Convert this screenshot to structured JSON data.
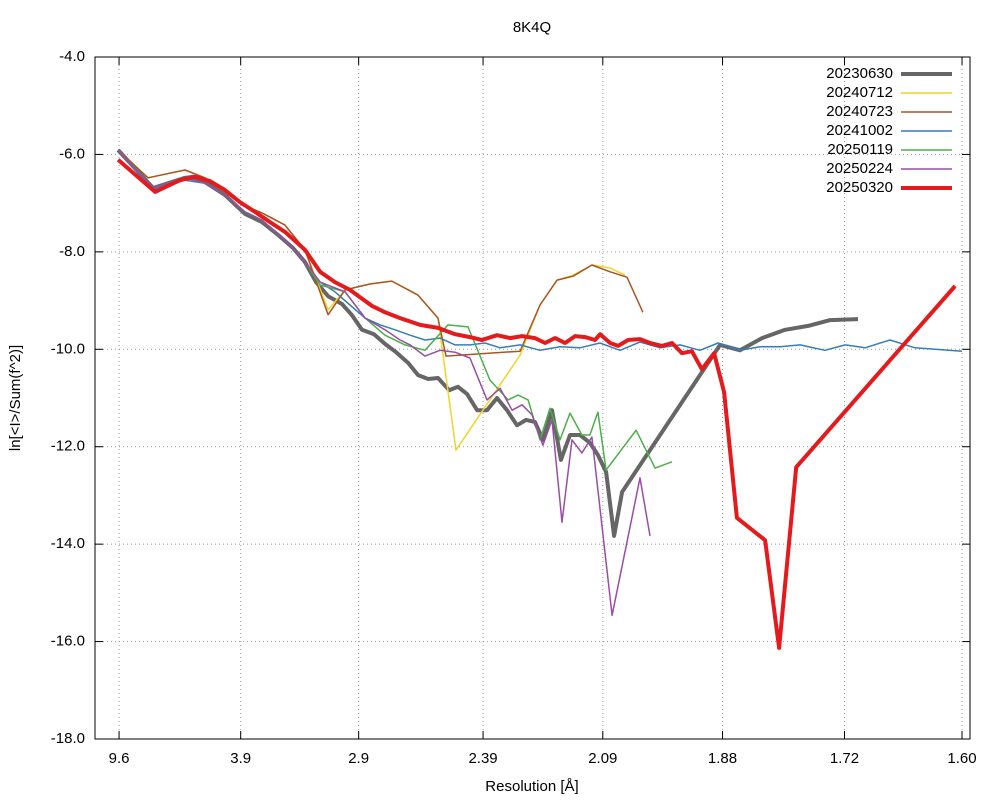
{
  "chart_data": {
    "type": "line",
    "title": "8K4Q",
    "xlabel": "Resolution [Å]",
    "ylabel": "ln[<I>/Sum(f^2)]",
    "xlim": [
      0,
      0.3946
    ],
    "ylim": [
      -18,
      -4
    ],
    "xticks": [
      {
        "value": 0.01085,
        "label": "9.6"
      },
      {
        "value": 0.0657,
        "label": "3.9"
      },
      {
        "value": 0.1189,
        "label": "2.9"
      },
      {
        "value": 0.175,
        "label": "2.39"
      },
      {
        "value": 0.229,
        "label": "2.09"
      },
      {
        "value": 0.283,
        "label": "1.88"
      },
      {
        "value": 0.338,
        "label": "1.72"
      },
      {
        "value": 0.391,
        "label": "1.60"
      }
    ],
    "yticks": [
      {
        "value": -4,
        "label": "-4.0"
      },
      {
        "value": -6,
        "label": "-6.0"
      },
      {
        "value": -8,
        "label": "-8.0"
      },
      {
        "value": -10,
        "label": "-10.0"
      },
      {
        "value": -12,
        "label": "-12.0"
      },
      {
        "value": -14,
        "label": "-14.0"
      },
      {
        "value": -16,
        "label": "-16.0"
      },
      {
        "value": -18,
        "label": "-18.0"
      }
    ],
    "grid": true,
    "legend": "upper right",
    "series": [
      {
        "name": "20230630",
        "color": "#666666",
        "line_width": 4,
        "x": [
          0.0104,
          0.0262,
          0.0406,
          0.0442,
          0.0496,
          0.0586,
          0.0677,
          0.0753,
          0.0825,
          0.0893,
          0.0947,
          0.0997,
          0.1051,
          0.1114,
          0.1159,
          0.1204,
          0.1258,
          0.1308,
          0.1358,
          0.1412,
          0.1457,
          0.1502,
          0.1547,
          0.1597,
          0.1637,
          0.1678,
          0.1723,
          0.1768,
          0.1813,
          0.1858,
          0.1903,
          0.1944,
          0.1984,
          0.202,
          0.2061,
          0.2101,
          0.2142,
          0.2187,
          0.2232,
          0.2268,
          0.2305,
          0.2341,
          0.2377,
          0.2819,
          0.2909,
          0.3008,
          0.3112,
          0.3216,
          0.3315,
          0.3441
        ],
        "values": [
          -5.91,
          -6.69,
          -6.48,
          -6.46,
          -6.57,
          -6.83,
          -7.22,
          -7.39,
          -7.65,
          -7.92,
          -8.21,
          -8.62,
          -8.91,
          -9.07,
          -9.3,
          -9.6,
          -9.69,
          -9.89,
          -10.06,
          -10.28,
          -10.53,
          -10.61,
          -10.59,
          -10.84,
          -10.77,
          -10.92,
          -11.25,
          -11.25,
          -11.0,
          -11.25,
          -11.56,
          -11.45,
          -11.49,
          -11.86,
          -11.25,
          -12.27,
          -11.76,
          -11.76,
          -11.92,
          -12.17,
          -12.52,
          -13.83,
          -12.93,
          -9.91,
          -10.02,
          -9.77,
          -9.6,
          -9.52,
          -9.4,
          -9.38
        ]
      },
      {
        "name": "20240712",
        "color": "#f2d42a",
        "line_width": 1.5,
        "x": [
          0.0104,
          0.0239,
          0.0406,
          0.0496,
          0.0586,
          0.0677,
          0.0753,
          0.0857,
          0.0947,
          0.1051,
          0.1128,
          0.124,
          0.1339,
          0.1457,
          0.1547,
          0.1628,
          0.1917,
          0.2007,
          0.2084,
          0.2156,
          0.2241,
          0.2323,
          0.239
        ],
        "values": [
          -5.91,
          -6.48,
          -6.32,
          -6.48,
          -6.77,
          -7.06,
          -7.2,
          -7.45,
          -7.96,
          -9.19,
          -8.78,
          -8.66,
          -8.6,
          -8.89,
          -9.36,
          -12.07,
          -10.12,
          -9.09,
          -8.58,
          -8.48,
          -8.27,
          -8.33,
          -8.48
        ]
      },
      {
        "name": "20240723",
        "color": "#a65628",
        "line_width": 1.5,
        "x": [
          0.0104,
          0.0239,
          0.0406,
          0.0496,
          0.0586,
          0.0677,
          0.0753,
          0.0857,
          0.0947,
          0.1051,
          0.1128,
          0.124,
          0.1339,
          0.1457,
          0.1547,
          0.1583,
          0.1917,
          0.2007,
          0.2084,
          0.2156,
          0.2241,
          0.2323,
          0.2399,
          0.2471
        ],
        "values": [
          -5.91,
          -6.48,
          -6.32,
          -6.48,
          -6.77,
          -7.06,
          -7.2,
          -7.45,
          -7.96,
          -9.29,
          -8.78,
          -8.66,
          -8.6,
          -8.89,
          -9.36,
          -10.14,
          -10.04,
          -9.09,
          -8.58,
          -8.5,
          -8.27,
          -8.41,
          -8.52,
          -9.24
        ]
      },
      {
        "name": "20241002",
        "color": "#377eb8",
        "line_width": 1.5,
        "x": [
          0.0104,
          0.0262,
          0.0406,
          0.0496,
          0.0586,
          0.0677,
          0.0753,
          0.0857,
          0.0947,
          0.1015,
          0.1082,
          0.115,
          0.1218,
          0.1286,
          0.1353,
          0.1421,
          0.1488,
          0.1556,
          0.1624,
          0.1691,
          0.1759,
          0.1827,
          0.1917,
          0.2007,
          0.2097,
          0.2187,
          0.2277,
          0.2368,
          0.2458,
          0.2548,
          0.2638,
          0.2728,
          0.281,
          0.2909,
          0.2999,
          0.3089,
          0.318,
          0.3292,
          0.3383,
          0.3473,
          0.3585,
          0.3698,
          0.391
        ],
        "values": [
          -5.91,
          -6.73,
          -6.53,
          -6.59,
          -6.83,
          -7.18,
          -7.35,
          -7.76,
          -8.21,
          -8.62,
          -8.82,
          -9.09,
          -9.36,
          -9.5,
          -9.6,
          -9.71,
          -9.81,
          -9.77,
          -9.91,
          -9.91,
          -9.87,
          -9.97,
          -9.91,
          -10.02,
          -9.95,
          -9.97,
          -9.87,
          -10.02,
          -9.85,
          -9.97,
          -9.91,
          -10.02,
          -9.87,
          -10.02,
          -9.95,
          -9.95,
          -9.91,
          -10.02,
          -9.91,
          -9.97,
          -9.81,
          -9.97,
          -10.04
        ]
      },
      {
        "name": "20250119",
        "color": "#4daf4a",
        "line_width": 1.5,
        "x": [
          0.0104,
          0.0262,
          0.0406,
          0.0496,
          0.0586,
          0.0677,
          0.0753,
          0.0857,
          0.0947,
          0.1015,
          0.1128,
          0.1218,
          0.1308,
          0.1398,
          0.1488,
          0.1592,
          0.1682,
          0.1781,
          0.1863,
          0.1908,
          0.1953,
          0.2007,
          0.2052,
          0.2097,
          0.2142,
          0.2196,
          0.2232,
          0.2268,
          0.2305,
          0.244,
          0.2526,
          0.2602
        ],
        "values": [
          -5.91,
          -6.69,
          -6.48,
          -6.59,
          -6.83,
          -7.18,
          -7.35,
          -7.76,
          -8.21,
          -8.68,
          -8.82,
          -9.36,
          -9.71,
          -9.91,
          -10.02,
          -9.5,
          -9.54,
          -10.63,
          -11.04,
          -10.94,
          -11.04,
          -11.86,
          -11.21,
          -11.86,
          -11.31,
          -11.76,
          -11.76,
          -11.29,
          -12.48,
          -11.66,
          -12.44,
          -12.31
        ]
      },
      {
        "name": "20250224",
        "color": "#984ea3",
        "line_width": 1.5,
        "x": [
          0.0104,
          0.0262,
          0.0406,
          0.0496,
          0.0586,
          0.0677,
          0.0753,
          0.0857,
          0.0947,
          0.1015,
          0.1128,
          0.1218,
          0.1308,
          0.1376,
          0.1421,
          0.1488,
          0.1556,
          0.1624,
          0.1691,
          0.1768,
          0.1827,
          0.1881,
          0.1926,
          0.1971,
          0.202,
          0.2061,
          0.2106,
          0.2151,
          0.2196,
          0.2241,
          0.2332,
          0.2458,
          0.2503
        ],
        "values": [
          -5.91,
          -6.69,
          -6.48,
          -6.59,
          -6.83,
          -7.18,
          -7.35,
          -7.76,
          -8.21,
          -8.62,
          -8.82,
          -9.36,
          -9.6,
          -9.81,
          -9.91,
          -10.14,
          -10.02,
          -10.06,
          -10.18,
          -11.04,
          -10.8,
          -11.25,
          -11.14,
          -11.35,
          -11.97,
          -11.45,
          -13.55,
          -11.86,
          -12.13,
          -11.8,
          -15.46,
          -12.64,
          -13.83
        ]
      },
      {
        "name": "20250320",
        "color": "#e41a1c",
        "line_width": 4,
        "x": [
          0.0104,
          0.0271,
          0.0383,
          0.0451,
          0.0519,
          0.0586,
          0.0654,
          0.0722,
          0.0789,
          0.0857,
          0.0947,
          0.1015,
          0.1082,
          0.115,
          0.1195,
          0.1249,
          0.1308,
          0.1376,
          0.1466,
          0.1547,
          0.1624,
          0.1691,
          0.1745,
          0.1813,
          0.1872,
          0.1926,
          0.1984,
          0.203,
          0.2075,
          0.212,
          0.2165,
          0.221,
          0.2255,
          0.2278,
          0.2323,
          0.2359,
          0.2404,
          0.2458,
          0.2503,
          0.2557,
          0.2602,
          0.2647,
          0.2692,
          0.2737,
          0.2792,
          0.2837,
          0.2895,
          0.3022,
          0.3085,
          0.3162,
          0.3879
        ],
        "values": [
          -6.11,
          -6.77,
          -6.53,
          -6.46,
          -6.55,
          -6.73,
          -6.98,
          -7.18,
          -7.39,
          -7.59,
          -7.96,
          -8.41,
          -8.62,
          -8.78,
          -8.93,
          -9.11,
          -9.24,
          -9.36,
          -9.5,
          -9.56,
          -9.69,
          -9.75,
          -9.81,
          -9.71,
          -9.77,
          -9.73,
          -9.77,
          -9.87,
          -9.77,
          -9.87,
          -9.73,
          -9.75,
          -9.81,
          -9.69,
          -9.87,
          -9.93,
          -9.81,
          -9.79,
          -9.87,
          -9.93,
          -9.87,
          -10.08,
          -10.04,
          -10.41,
          -10.08,
          -10.88,
          -13.46,
          -13.92,
          -16.13,
          -12.42,
          -8.7
        ]
      }
    ]
  }
}
